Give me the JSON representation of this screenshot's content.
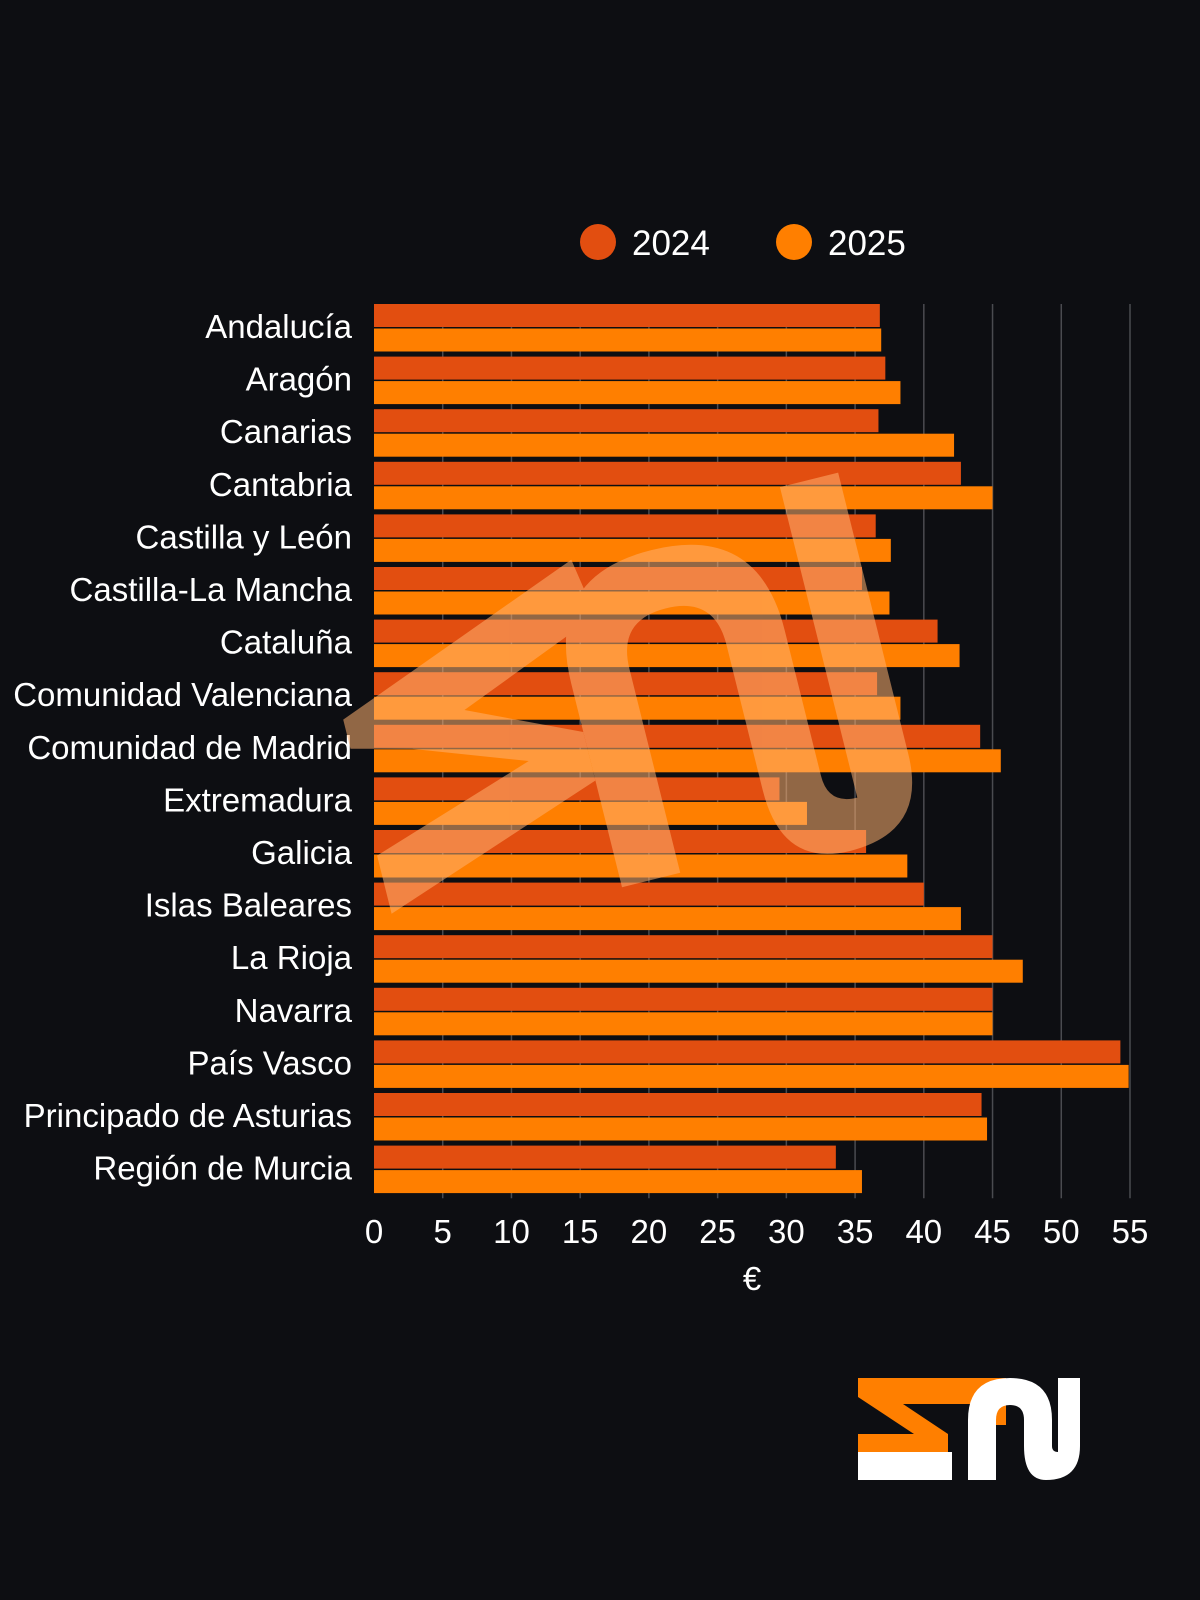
{
  "chart_data": {
    "type": "bar",
    "orientation": "horizontal",
    "categories": [
      "Andalucía",
      "Aragón",
      "Canarias",
      "Cantabria",
      "Castilla y León",
      "Castilla-La Mancha",
      "Cataluña",
      "Comunidad Valenciana",
      "Comunidad de Madrid",
      "Extremadura",
      "Galicia",
      "Islas Baleares",
      "La Rioja",
      "Navarra",
      "País Vasco",
      "Principado de Asturias",
      "Región de Murcia"
    ],
    "series": [
      {
        "name": "2024",
        "color": "#e24e10",
        "values": [
          36.8,
          37.2,
          36.7,
          42.7,
          36.5,
          35.5,
          41.0,
          36.6,
          44.1,
          29.5,
          35.8,
          40.0,
          45.0,
          45.0,
          54.3,
          44.2,
          33.6
        ]
      },
      {
        "name": "2025",
        "color": "#ff7f00",
        "values": [
          36.9,
          38.3,
          42.2,
          45.0,
          37.6,
          37.5,
          42.6,
          38.3,
          45.6,
          31.5,
          38.8,
          42.7,
          47.2,
          45.0,
          54.9,
          44.6,
          35.5
        ]
      }
    ],
    "xlabel": "€",
    "ylabel": "",
    "xlim": [
      0,
      55
    ],
    "xticks": [
      0,
      5,
      10,
      15,
      20,
      25,
      30,
      35,
      40,
      45,
      50,
      55
    ],
    "grid": true,
    "legend_position": "top"
  },
  "brand": {
    "logo_text": "SN",
    "watermark_text": "SN",
    "logo_colors": {
      "orange": "#ff7f00",
      "white": "#ffffff"
    }
  }
}
